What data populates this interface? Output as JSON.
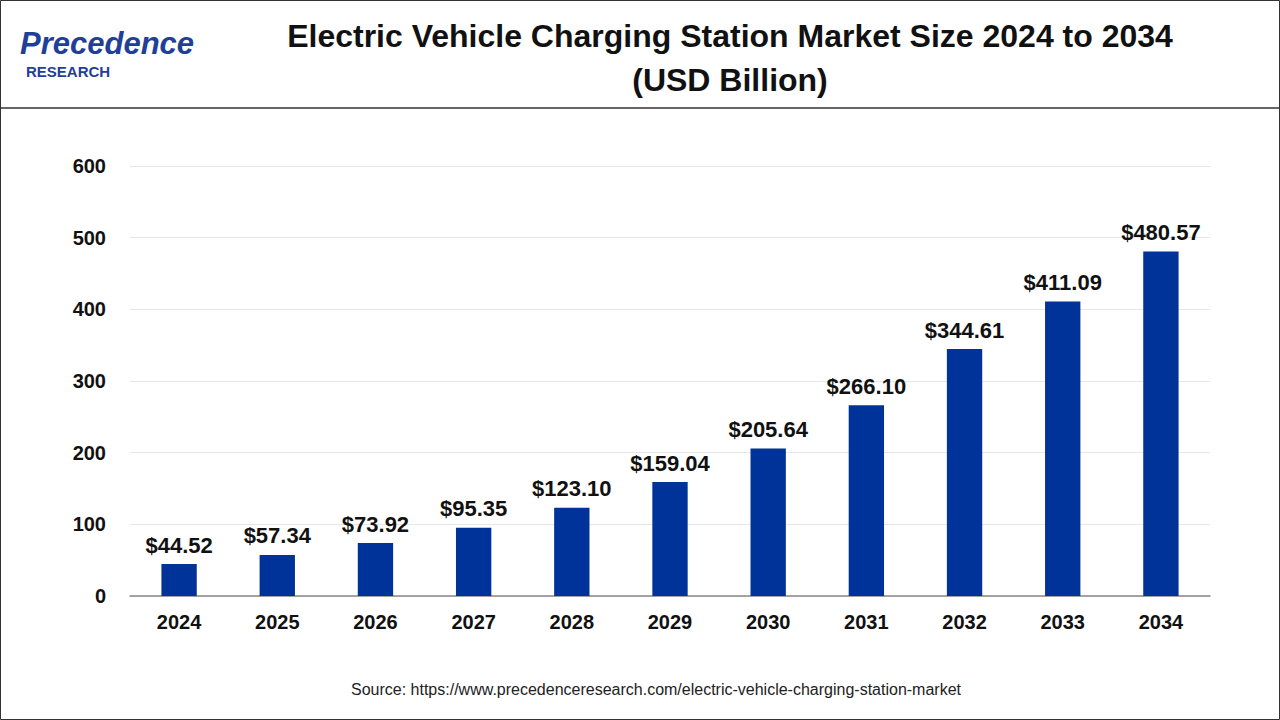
{
  "chart_data": {
    "type": "bar",
    "title": "Electric Vehicle Charging Station Market Size 2024 to 2034\n(USD Billion)",
    "logo": {
      "name": "Precedence",
      "subtitle": "RESEARCH"
    },
    "source": "Source: https://www.precedenceresearch.com/electric-vehicle-charging-station-market",
    "categories": [
      "2024",
      "2025",
      "2026",
      "2027",
      "2028",
      "2029",
      "2030",
      "2031",
      "2032",
      "2033",
      "2034"
    ],
    "values": [
      44.52,
      57.34,
      73.92,
      95.35,
      123.1,
      159.04,
      205.64,
      266.1,
      344.61,
      411.09,
      480.57
    ],
    "value_labels": [
      "$44.52",
      "$57.34",
      "$73.92",
      "$95.35",
      "$123.10",
      "$159.04",
      "$205.64",
      "$266.10",
      "$344.61",
      "$411.09",
      "$480.57"
    ],
    "color": "#003399",
    "ylim": [
      0,
      600
    ],
    "yticks": [
      0,
      100,
      200,
      300,
      400,
      500,
      600
    ],
    "grid": true,
    "data_labels": true
  }
}
